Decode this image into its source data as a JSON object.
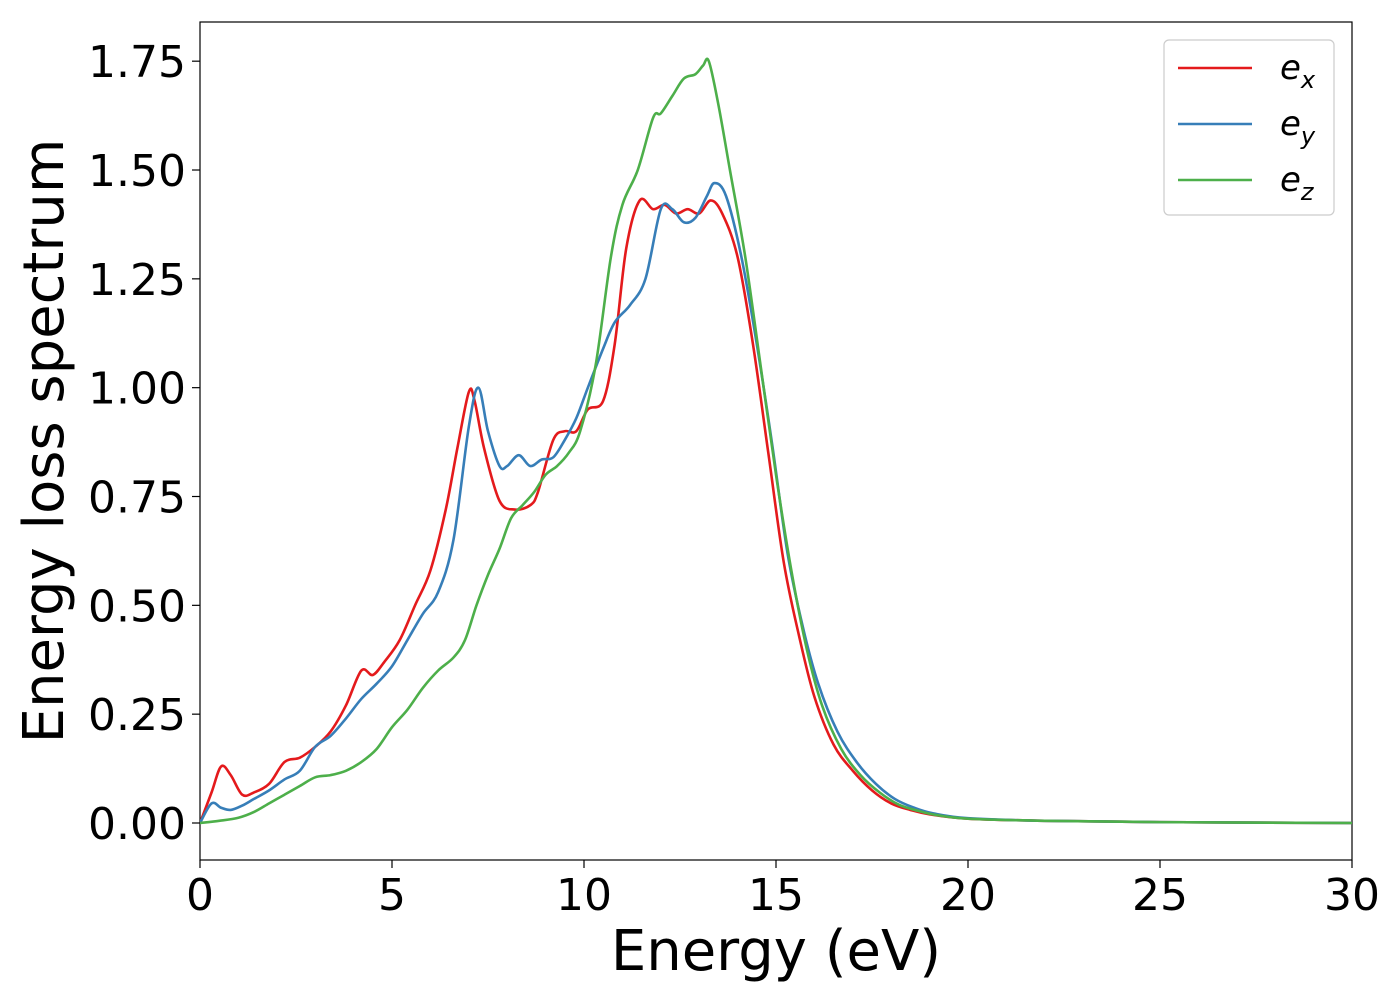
{
  "chart_data": {
    "type": "line",
    "xlabel": "Energy (eV)",
    "ylabel": "Energy loss spectrum",
    "xlim": [
      0,
      30
    ],
    "ylim": [
      -0.085,
      1.84
    ],
    "xticks": [
      0,
      5,
      10,
      15,
      20,
      25,
      30
    ],
    "xtick_labels": [
      "0",
      "5",
      "10",
      "15",
      "20",
      "25",
      "30"
    ],
    "yticks": [
      0,
      0.25,
      0.5,
      0.75,
      1.0,
      1.25,
      1.5,
      1.75
    ],
    "ytick_labels": [
      "0.00",
      "0.25",
      "0.50",
      "0.75",
      "1.00",
      "1.25",
      "1.50",
      "1.75"
    ],
    "grid": false,
    "legend_position": "top-right",
    "series": [
      {
        "name": "e_x",
        "legend_base": "e",
        "legend_sub": "x",
        "color": "#e41a1c",
        "x": [
          0,
          0.3,
          0.55,
          0.8,
          1.1,
          1.4,
          1.8,
          2.2,
          2.6,
          3.0,
          3.4,
          3.8,
          4.2,
          4.5,
          4.8,
          5.2,
          5.6,
          6.0,
          6.4,
          6.7,
          7.0,
          7.15,
          7.4,
          7.8,
          8.2,
          8.6,
          8.8,
          9.2,
          9.5,
          9.8,
          10.1,
          10.5,
          10.8,
          11.1,
          11.45,
          11.8,
          12.1,
          12.4,
          12.7,
          13.0,
          13.3,
          13.6,
          14.0,
          14.4,
          14.8,
          15.2,
          15.6,
          16.0,
          16.5,
          17.0,
          17.5,
          18.0,
          18.5,
          19.0,
          20.0,
          22.0,
          25.0,
          30.0
        ],
        "y": [
          0.0,
          0.07,
          0.13,
          0.11,
          0.065,
          0.07,
          0.09,
          0.14,
          0.15,
          0.175,
          0.21,
          0.27,
          0.35,
          0.34,
          0.37,
          0.42,
          0.5,
          0.58,
          0.72,
          0.86,
          0.99,
          0.97,
          0.86,
          0.74,
          0.72,
          0.73,
          0.76,
          0.88,
          0.9,
          0.9,
          0.95,
          0.97,
          1.1,
          1.32,
          1.43,
          1.41,
          1.42,
          1.4,
          1.41,
          1.4,
          1.43,
          1.4,
          1.3,
          1.1,
          0.85,
          0.6,
          0.43,
          0.29,
          0.18,
          0.12,
          0.075,
          0.045,
          0.03,
          0.02,
          0.01,
          0.005,
          0.002,
          0.0
        ]
      },
      {
        "name": "e_y",
        "legend_base": "e",
        "legend_sub": "y",
        "color": "#377eb8",
        "x": [
          0,
          0.3,
          0.55,
          0.8,
          1.1,
          1.4,
          1.8,
          2.2,
          2.6,
          3.0,
          3.4,
          3.8,
          4.2,
          4.6,
          5.0,
          5.4,
          5.8,
          6.2,
          6.6,
          7.0,
          7.25,
          7.5,
          7.8,
          8.0,
          8.3,
          8.6,
          8.9,
          9.2,
          9.5,
          9.8,
          10.1,
          10.5,
          10.8,
          11.2,
          11.6,
          12.0,
          12.3,
          12.6,
          12.9,
          13.2,
          13.4,
          13.7,
          14.1,
          14.5,
          14.9,
          15.3,
          15.7,
          16.1,
          16.6,
          17.1,
          17.6,
          18.1,
          18.6,
          19.1,
          20.0,
          22.0,
          25.0,
          30.0
        ],
        "y": [
          0.0,
          0.045,
          0.035,
          0.03,
          0.04,
          0.055,
          0.075,
          0.1,
          0.12,
          0.175,
          0.2,
          0.24,
          0.285,
          0.32,
          0.36,
          0.42,
          0.48,
          0.53,
          0.65,
          0.91,
          1.0,
          0.9,
          0.82,
          0.82,
          0.845,
          0.82,
          0.835,
          0.84,
          0.88,
          0.93,
          1.0,
          1.09,
          1.15,
          1.19,
          1.25,
          1.41,
          1.41,
          1.38,
          1.39,
          1.44,
          1.47,
          1.44,
          1.3,
          1.1,
          0.87,
          0.62,
          0.45,
          0.32,
          0.21,
          0.14,
          0.09,
          0.055,
          0.035,
          0.022,
          0.011,
          0.005,
          0.002,
          0.0
        ]
      },
      {
        "name": "e_z",
        "legend_base": "e",
        "legend_sub": "z",
        "color": "#4daf4a",
        "x": [
          0,
          0.5,
          1.0,
          1.4,
          1.8,
          2.2,
          2.6,
          3.0,
          3.4,
          3.8,
          4.2,
          4.6,
          5.0,
          5.4,
          5.8,
          6.2,
          6.6,
          6.9,
          7.2,
          7.5,
          7.8,
          8.1,
          8.4,
          8.7,
          9.0,
          9.3,
          9.6,
          9.9,
          10.3,
          10.7,
          11.0,
          11.4,
          11.8,
          12.0,
          12.3,
          12.6,
          12.9,
          13.1,
          13.25,
          13.5,
          13.8,
          14.2,
          14.6,
          15.0,
          15.4,
          15.8,
          16.2,
          16.7,
          17.2,
          17.7,
          18.2,
          18.7,
          19.2,
          20.0,
          22.0,
          25.0,
          30.0
        ],
        "y": [
          0.0,
          0.005,
          0.012,
          0.025,
          0.045,
          0.065,
          0.085,
          0.105,
          0.11,
          0.12,
          0.14,
          0.17,
          0.22,
          0.26,
          0.31,
          0.35,
          0.38,
          0.42,
          0.5,
          0.57,
          0.63,
          0.7,
          0.73,
          0.76,
          0.8,
          0.82,
          0.85,
          0.9,
          1.05,
          1.3,
          1.42,
          1.5,
          1.62,
          1.63,
          1.67,
          1.71,
          1.72,
          1.74,
          1.75,
          1.65,
          1.5,
          1.3,
          1.05,
          0.8,
          0.58,
          0.4,
          0.27,
          0.17,
          0.11,
          0.07,
          0.042,
          0.028,
          0.018,
          0.01,
          0.005,
          0.002,
          0.0
        ]
      }
    ]
  }
}
